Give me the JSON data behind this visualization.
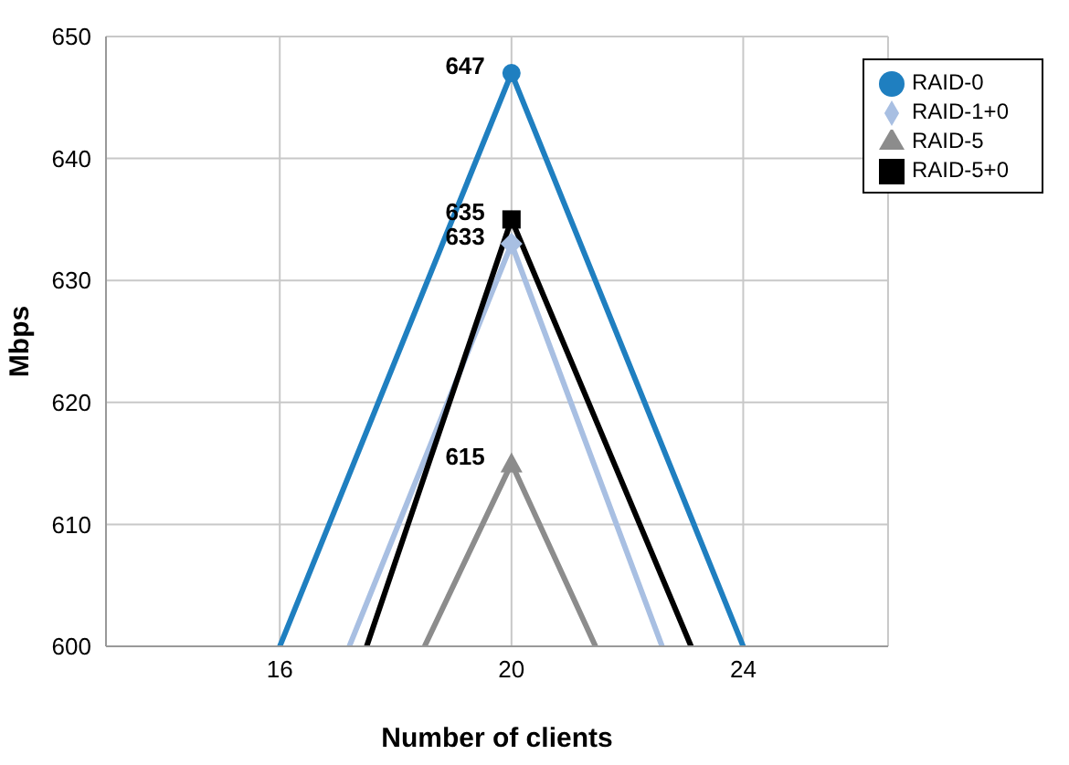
{
  "chart_data": {
    "type": "line",
    "xlabel": "Number of clients",
    "ylabel": "Mbps",
    "xlim": [
      13,
      26.5
    ],
    "xticks": [
      16,
      20,
      24
    ],
    "ylim": [
      600,
      650
    ],
    "yticks": [
      600,
      610,
      620,
      630,
      640,
      650
    ],
    "grid": true,
    "legend": "top right",
    "series": [
      {
        "color": "#1f7fc0",
        "marker": "none",
        "x": [
          16,
          20,
          24
        ],
        "values": [
          600,
          647,
          600
        ]
      },
      {
        "color": "#a8bfe2",
        "marker": "none",
        "x": [
          17.2,
          20,
          22.6
        ],
        "values": [
          600,
          633,
          600
        ]
      },
      {
        "color": "#8c8c8c",
        "marker": "none",
        "x": [
          18.5,
          20,
          21.45
        ],
        "values": [
          600,
          615,
          600
        ]
      },
      {
        "color": "#000000",
        "marker": "none",
        "x": [
          17.5,
          20,
          23.1
        ],
        "values": [
          600,
          635,
          600
        ]
      },
      {
        "type": "scatter",
        "name": "RAID-0",
        "color": "#1f7fc0",
        "marker": "circle",
        "x": [
          20
        ],
        "values": [
          647
        ],
        "value_labels": [
          "647"
        ]
      },
      {
        "type": "scatter",
        "name": "RAID-1+0",
        "color": "#a8bfe2",
        "marker": "diamond",
        "x": [
          20
        ],
        "values": [
          633
        ],
        "value_labels": [
          "633"
        ]
      },
      {
        "type": "scatter",
        "name": "RAID-5",
        "color": "#8c8c8c",
        "marker": "triangle",
        "x": [
          20
        ],
        "values": [
          615
        ],
        "value_labels": [
          "615"
        ]
      },
      {
        "type": "scatter",
        "name": "RAID-5+0",
        "color": "#000000",
        "marker": "square",
        "x": [
          20
        ],
        "values": [
          635
        ],
        "value_labels": [
          "635"
        ]
      }
    ]
  }
}
